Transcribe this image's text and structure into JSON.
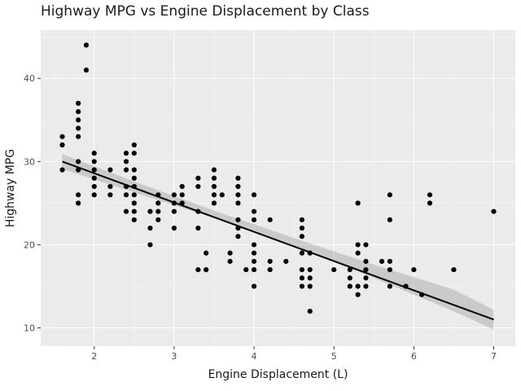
{
  "chart_data": {
    "type": "scatter",
    "title": "Highway MPG vs Engine Displacement by Class",
    "xlabel": "Engine Displacement (L)",
    "ylabel": "Highway MPG",
    "xlim": [
      1.33,
      7.27
    ],
    "ylim": [
      7.8,
      45.8
    ],
    "xticks": [
      2,
      3,
      4,
      5,
      6,
      7
    ],
    "yticks": [
      10,
      20,
      30,
      40
    ],
    "grid": true,
    "legend": "none",
    "colors": {
      "panel_background": "#ebebeb",
      "grid_major": "#ffffff",
      "points": "#000000",
      "fit_line": "#000000",
      "confidence_band": "#999999"
    },
    "points": [
      [
        1.6,
        33
      ],
      [
        1.6,
        32
      ],
      [
        1.6,
        29
      ],
      [
        1.8,
        37
      ],
      [
        1.8,
        36
      ],
      [
        1.8,
        35
      ],
      [
        1.8,
        34
      ],
      [
        1.8,
        33
      ],
      [
        1.8,
        30
      ],
      [
        1.8,
        29
      ],
      [
        1.8,
        26
      ],
      [
        1.8,
        25
      ],
      [
        1.9,
        44
      ],
      [
        1.9,
        41
      ],
      [
        2.0,
        31
      ],
      [
        2.0,
        30
      ],
      [
        2.0,
        29
      ],
      [
        2.0,
        28
      ],
      [
        2.0,
        27
      ],
      [
        2.0,
        26
      ],
      [
        2.2,
        29
      ],
      [
        2.2,
        27
      ],
      [
        2.2,
        26
      ],
      [
        2.4,
        31
      ],
      [
        2.4,
        30
      ],
      [
        2.4,
        29
      ],
      [
        2.4,
        27
      ],
      [
        2.4,
        26
      ],
      [
        2.4,
        24
      ],
      [
        2.5,
        32
      ],
      [
        2.5,
        31
      ],
      [
        2.5,
        29
      ],
      [
        2.5,
        28
      ],
      [
        2.5,
        27
      ],
      [
        2.5,
        26
      ],
      [
        2.5,
        25
      ],
      [
        2.5,
        24
      ],
      [
        2.5,
        23
      ],
      [
        2.7,
        24
      ],
      [
        2.7,
        22
      ],
      [
        2.7,
        20
      ],
      [
        2.8,
        26
      ],
      [
        2.8,
        25
      ],
      [
        2.8,
        24
      ],
      [
        2.8,
        23
      ],
      [
        3.0,
        26
      ],
      [
        3.0,
        25
      ],
      [
        3.0,
        24
      ],
      [
        3.0,
        22
      ],
      [
        3.1,
        27
      ],
      [
        3.1,
        26
      ],
      [
        3.1,
        25
      ],
      [
        3.3,
        28
      ],
      [
        3.3,
        27
      ],
      [
        3.3,
        24
      ],
      [
        3.3,
        22
      ],
      [
        3.3,
        17
      ],
      [
        3.4,
        19
      ],
      [
        3.4,
        17
      ],
      [
        3.5,
        29
      ],
      [
        3.5,
        28
      ],
      [
        3.5,
        27
      ],
      [
        3.5,
        26
      ],
      [
        3.5,
        25
      ],
      [
        3.6,
        26
      ],
      [
        3.7,
        19
      ],
      [
        3.7,
        18
      ],
      [
        3.8,
        28
      ],
      [
        3.8,
        27
      ],
      [
        3.8,
        26
      ],
      [
        3.8,
        25
      ],
      [
        3.8,
        23
      ],
      [
        3.8,
        22
      ],
      [
        3.8,
        21
      ],
      [
        3.9,
        17
      ],
      [
        4.0,
        26
      ],
      [
        4.0,
        24
      ],
      [
        4.0,
        23
      ],
      [
        4.0,
        20
      ],
      [
        4.0,
        19
      ],
      [
        4.0,
        18
      ],
      [
        4.0,
        17
      ],
      [
        4.0,
        15
      ],
      [
        4.2,
        23
      ],
      [
        4.2,
        18
      ],
      [
        4.2,
        17
      ],
      [
        4.4,
        18
      ],
      [
        4.6,
        23
      ],
      [
        4.6,
        22
      ],
      [
        4.6,
        21
      ],
      [
        4.6,
        19
      ],
      [
        4.6,
        17
      ],
      [
        4.6,
        16
      ],
      [
        4.6,
        15
      ],
      [
        4.7,
        19
      ],
      [
        4.7,
        17
      ],
      [
        4.7,
        16
      ],
      [
        4.7,
        15
      ],
      [
        4.7,
        12
      ],
      [
        5.0,
        17
      ],
      [
        5.2,
        17
      ],
      [
        5.2,
        16
      ],
      [
        5.2,
        15
      ],
      [
        5.3,
        25
      ],
      [
        5.3,
        20
      ],
      [
        5.3,
        19
      ],
      [
        5.3,
        15
      ],
      [
        5.3,
        14
      ],
      [
        5.4,
        20
      ],
      [
        5.4,
        18
      ],
      [
        5.4,
        17
      ],
      [
        5.4,
        16
      ],
      [
        5.4,
        15
      ],
      [
        5.6,
        18
      ],
      [
        5.7,
        26
      ],
      [
        5.7,
        23
      ],
      [
        5.7,
        18
      ],
      [
        5.7,
        17
      ],
      [
        5.7,
        15
      ],
      [
        5.9,
        15
      ],
      [
        6.0,
        17
      ],
      [
        6.1,
        14
      ],
      [
        6.2,
        26
      ],
      [
        6.2,
        25
      ],
      [
        6.5,
        17
      ],
      [
        7.0,
        24
      ]
    ],
    "fit_line": {
      "x": [
        1.6,
        7.0
      ],
      "y": [
        30.0,
        11.0
      ]
    },
    "confidence_band": {
      "x": [
        1.6,
        2.5,
        3.5,
        4.5,
        5.5,
        6.5,
        7.0
      ],
      "lower": [
        29.1,
        26.3,
        23.2,
        19.8,
        16.0,
        12.0,
        9.8
      ],
      "upper": [
        30.9,
        27.6,
        24.1,
        20.8,
        17.6,
        14.6,
        12.2
      ]
    }
  }
}
